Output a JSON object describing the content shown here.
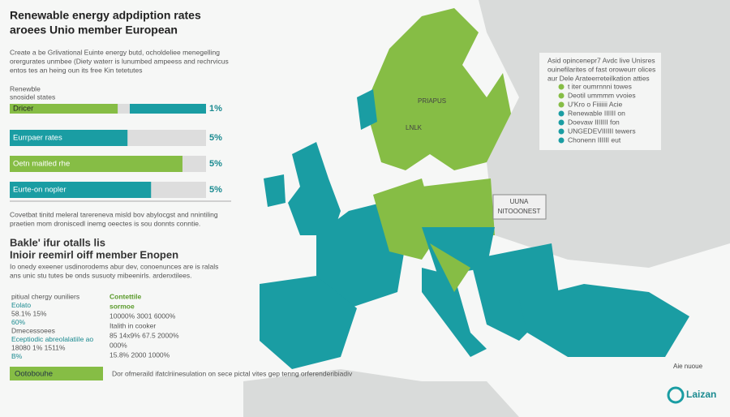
{
  "header": {
    "title": [
      "Renewable energy adpdiption rates",
      "aroees Unio member European"
    ],
    "intro": [
      "Create a be Grlivational Euinte energy  butd, ocholdeliee menegelling",
      "orergurates unmbee (Diety waterr is lunumbed ampeess and rechrvicus",
      "entos tes an heing oun its free Kin tetetutes"
    ]
  },
  "bars": {
    "caption": [
      "Renewble",
      "snosidel states"
    ],
    "rows": [
      {
        "label": "Dricer",
        "value": "1%"
      },
      {
        "label": "Eurrpaer rates",
        "value": "5%"
      },
      {
        "label": "Oetn maitled rhe",
        "value": "5%"
      },
      {
        "label": "Eurte-on nopler",
        "value": "5%"
      }
    ]
  },
  "section2": {
    "text": [
      "Covetbat tinitd meleral tarereneva misld bov abylocgst and nnintiling",
      "praetien mom droniscedl inemg oeectes is sou donnts conntie."
    ],
    "heading": [
      "Bakle' ifur otalls lis",
      "Inioir reemirl oiff member Enopen"
    ],
    "body": [
      "Io onedy exeener usdinorodems abur dev, conoenunces are is ralals",
      "ans unic stu tutes be onds susuoty mibeenirls. ardenxtilees."
    ]
  },
  "stats_left": [
    "pitiual chergy ouniliers",
    "Eolato",
    "58.1%  15%",
    "60%",
    "Dmecessoees",
    "Eceptiodic abreolalatiile ao",
    "18080 1% 1511%",
    "B%"
  ],
  "stats_right": [
    "Contettile",
    "sormoe",
    "10000%  3001  6000%",
    "Italith in cooker",
    "85  14x9%  67.5  2000%",
    "000%",
    "15.8%  2000  1000%"
  ],
  "footer": {
    "button": "Ootobouhe",
    "text": "Dor ofmeraild ifatclriinesulation on sece pictal vites gep tenng orferenderibiadiv",
    "logo": "Laizan"
  },
  "legend": {
    "intro": [
      "Asid opincenepr7 Avdc live Unisres",
      "ouinefilarites of fast oroweurr olices",
      "aur Dele Arateerreteilkation atties"
    ],
    "items": [
      "t iter oumrnnni towes",
      "Deotil ummmm vvoies",
      "U'Kro o Fiiiiiii Acie",
      "Renewable IIIIII on",
      "Doevaw IIIIIII fon",
      "UNGEDEVIIIIII tewers",
      "Chonenn IIIIII eut"
    ]
  },
  "map_labels": {
    "box": [
      "UUNA",
      "NITOOONEST"
    ],
    "north": "PRIAPUS",
    "center": "LNLK",
    "corner": "Aie nuoue"
  }
}
